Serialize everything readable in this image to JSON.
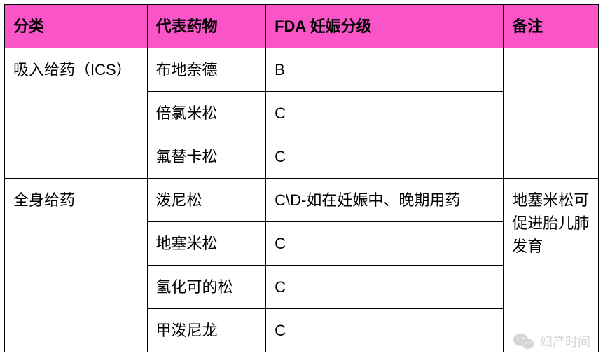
{
  "table": {
    "type": "table",
    "header_bg": "#f955c9",
    "border_color": "#000000",
    "columns": [
      {
        "key": "cat",
        "label": "分类",
        "width": "24%"
      },
      {
        "key": "drug",
        "label": "代表药物",
        "width": "20%"
      },
      {
        "key": "fda",
        "label": "FDA 妊娠分级",
        "width": "40%"
      },
      {
        "key": "notes",
        "label": "备注",
        "width": "16%"
      }
    ],
    "groups": [
      {
        "cat": "吸入给药（ICS）",
        "notes": "",
        "rows": [
          {
            "drug": "布地奈德",
            "fda": "B"
          },
          {
            "drug": "倍氯米松",
            "fda": "C"
          },
          {
            "drug": "氟替卡松",
            "fda": "C"
          }
        ]
      },
      {
        "cat": "全身给药",
        "notes": "地塞米松可促进胎儿肺发育",
        "rows": [
          {
            "drug": "泼尼松",
            "fda": "C\\D-如在妊娠中、晚期用药"
          },
          {
            "drug": "地塞米松",
            "fda": "C"
          },
          {
            "drug": "氢化可的松",
            "fda": "C"
          },
          {
            "drug": "甲泼尼龙",
            "fda": "C"
          }
        ]
      }
    ]
  },
  "watermark": {
    "text": "妇产时间",
    "color": "#cfcfcf"
  }
}
